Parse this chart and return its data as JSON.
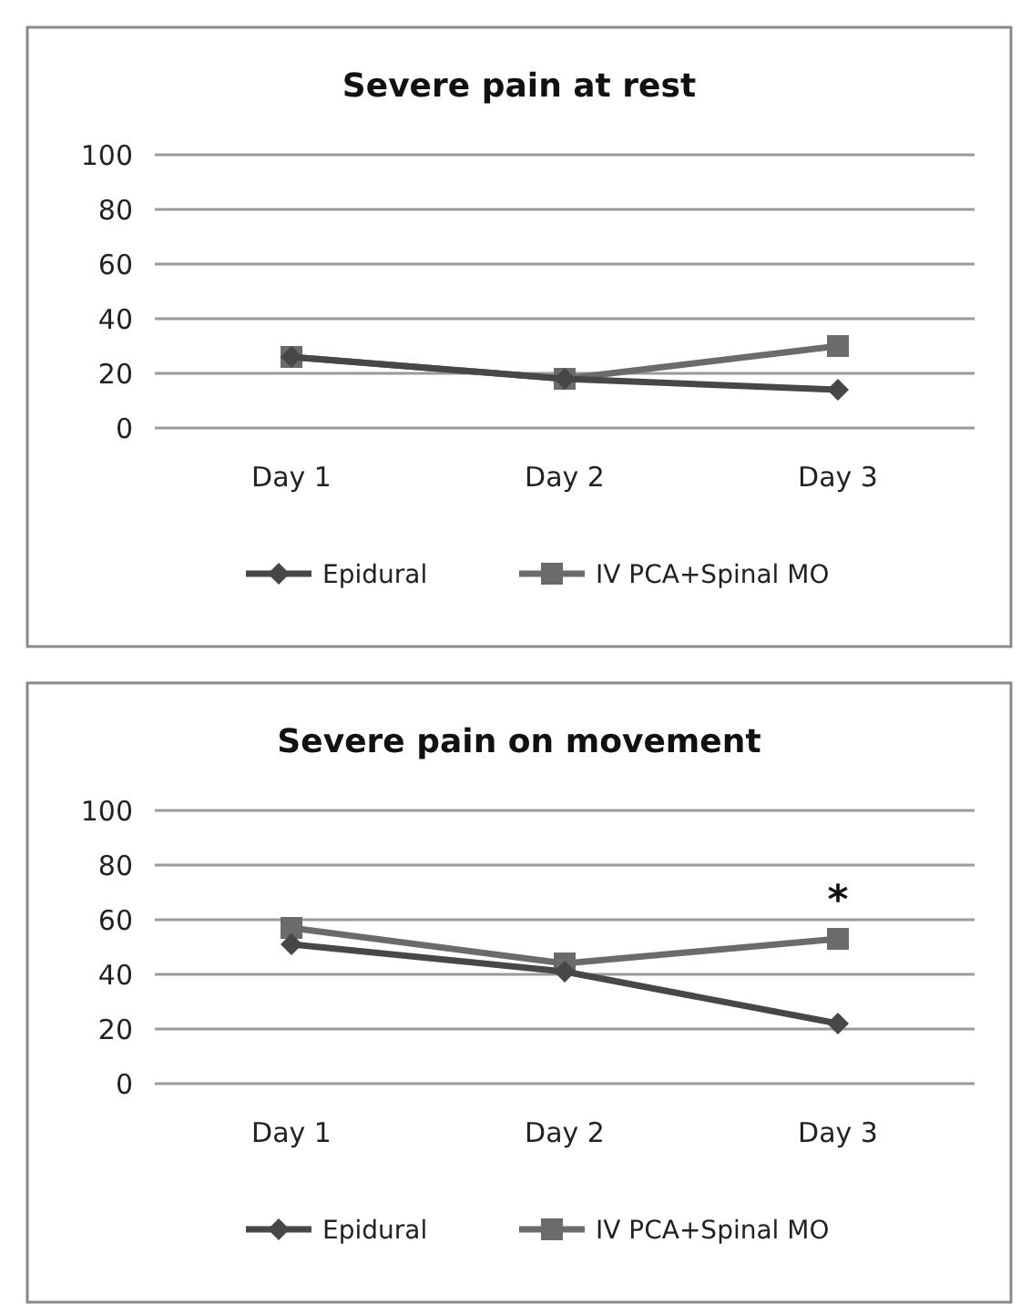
{
  "chart_data": [
    {
      "type": "line",
      "title": "Severe pain at rest",
      "categories": [
        "Day 1",
        "Day 2",
        "Day 3"
      ],
      "series": [
        {
          "name": "Epidural",
          "color": "#474747",
          "marker": "diamond",
          "values": [
            26,
            18,
            14
          ]
        },
        {
          "name": "IV PCA+Spinal MO",
          "color": "#6b6b6b",
          "marker": "square",
          "values": [
            26,
            18,
            30
          ]
        }
      ],
      "ylim": [
        0,
        100
      ],
      "yticks": [
        0,
        20,
        40,
        60,
        80,
        100
      ],
      "grid": "y",
      "legend": "bottom"
    },
    {
      "type": "line",
      "title": "Severe pain on movement",
      "categories": [
        "Day 1",
        "Day 2",
        "Day 3"
      ],
      "series": [
        {
          "name": "Epidural",
          "color": "#474747",
          "marker": "diamond",
          "values": [
            51,
            41,
            22
          ]
        },
        {
          "name": "IV PCA+Spinal MO",
          "color": "#6b6b6b",
          "marker": "square",
          "values": [
            57,
            44,
            53
          ]
        }
      ],
      "annotations": [
        {
          "text": "*",
          "x": "Day 3",
          "y": 53
        }
      ],
      "ylim": [
        0,
        100
      ],
      "yticks": [
        0,
        20,
        40,
        60,
        80,
        100
      ],
      "grid": "y",
      "legend": "bottom"
    }
  ]
}
